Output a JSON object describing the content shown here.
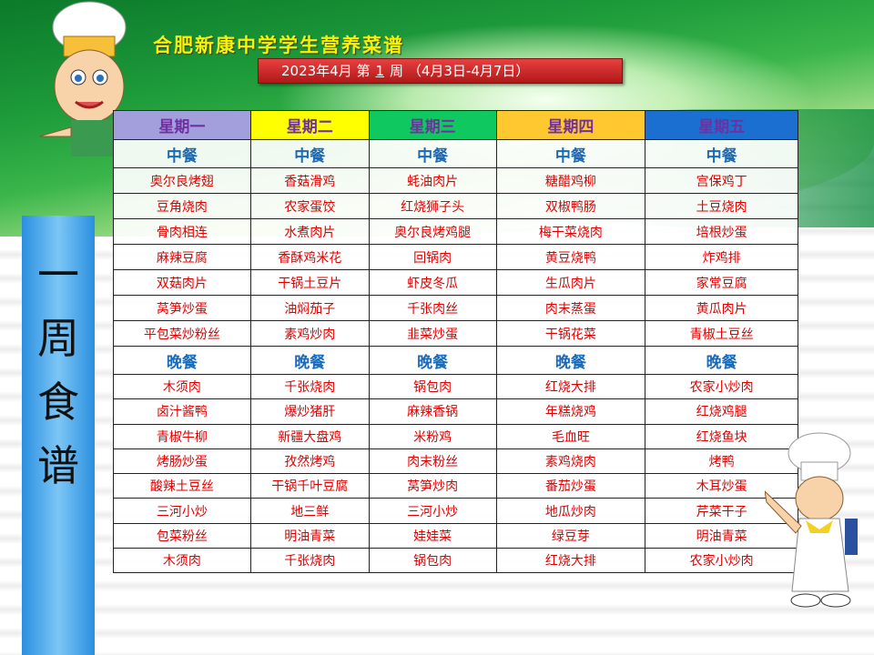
{
  "title": "合肥新康中学学生营养菜谱",
  "banner": {
    "prefix": "2023年4月 第",
    "week": "1",
    "suffix": "周 （4月3日-4月7日）"
  },
  "side_label": [
    "一",
    "周",
    "食",
    "谱"
  ],
  "colors": {
    "mon": "#a39fdc",
    "tue": "#ffff00",
    "wed": "#10c860",
    "thu": "#ffc830",
    "fri": "#1a6fd0",
    "dish": "#e00000",
    "meal": "#1a6ab8"
  },
  "days": [
    "星期一",
    "星期二",
    "星期三",
    "星期四",
    "星期五"
  ],
  "lunch_label": "中餐",
  "dinner_label": "晚餐",
  "lunch": [
    [
      "奥尔良烤翅",
      "香菇滑鸡",
      "蚝油肉片",
      "糖醋鸡柳",
      "宫保鸡丁"
    ],
    [
      "豆角烧肉",
      "农家蛋饺",
      "红烧狮子头",
      "双椒鸭肠",
      "土豆烧肉"
    ],
    [
      "骨肉相连",
      "水煮肉片",
      "奥尔良烤鸡腿",
      "梅干菜烧肉",
      "培根炒蛋"
    ],
    [
      "麻辣豆腐",
      "香酥鸡米花",
      "回锅肉",
      "黄豆烧鸭",
      "炸鸡排"
    ],
    [
      "双菇肉片",
      "干锅土豆片",
      "虾皮冬瓜",
      "生瓜肉片",
      "家常豆腐"
    ],
    [
      "莴笋炒蛋",
      "油焖茄子",
      "千张肉丝",
      "肉末蒸蛋",
      "黄瓜肉片"
    ],
    [
      "平包菜炒粉丝",
      "素鸡炒肉",
      "韭菜炒蛋",
      "干锅花菜",
      "青椒土豆丝"
    ]
  ],
  "dinner": [
    [
      "木须肉",
      "千张烧肉",
      "锅包肉",
      "红烧大排",
      "农家小炒肉"
    ],
    [
      "卤汁酱鸭",
      "爆炒猪肝",
      "麻辣香锅",
      "年糕烧鸡",
      "红烧鸡腿"
    ],
    [
      "青椒牛柳",
      "新疆大盘鸡",
      "米粉鸡",
      "毛血旺",
      "红烧鱼块"
    ],
    [
      "烤肠炒蛋",
      "孜然烤鸡",
      "肉末粉丝",
      "素鸡烧肉",
      "烤鸭"
    ],
    [
      "酸辣土豆丝",
      "干锅千叶豆腐",
      "莴笋炒肉",
      "番茄炒蛋",
      "木耳炒蛋"
    ],
    [
      "三河小炒",
      "地三鲜",
      "三河小炒",
      "地瓜炒肉",
      "芹菜干子"
    ],
    [
      "包菜粉丝",
      "明油青菜",
      "娃娃菜",
      "绿豆芽",
      "明油青菜"
    ],
    [
      "木须肉",
      "千张烧肉",
      "锅包肉",
      "红烧大排",
      "农家小炒肉"
    ]
  ]
}
